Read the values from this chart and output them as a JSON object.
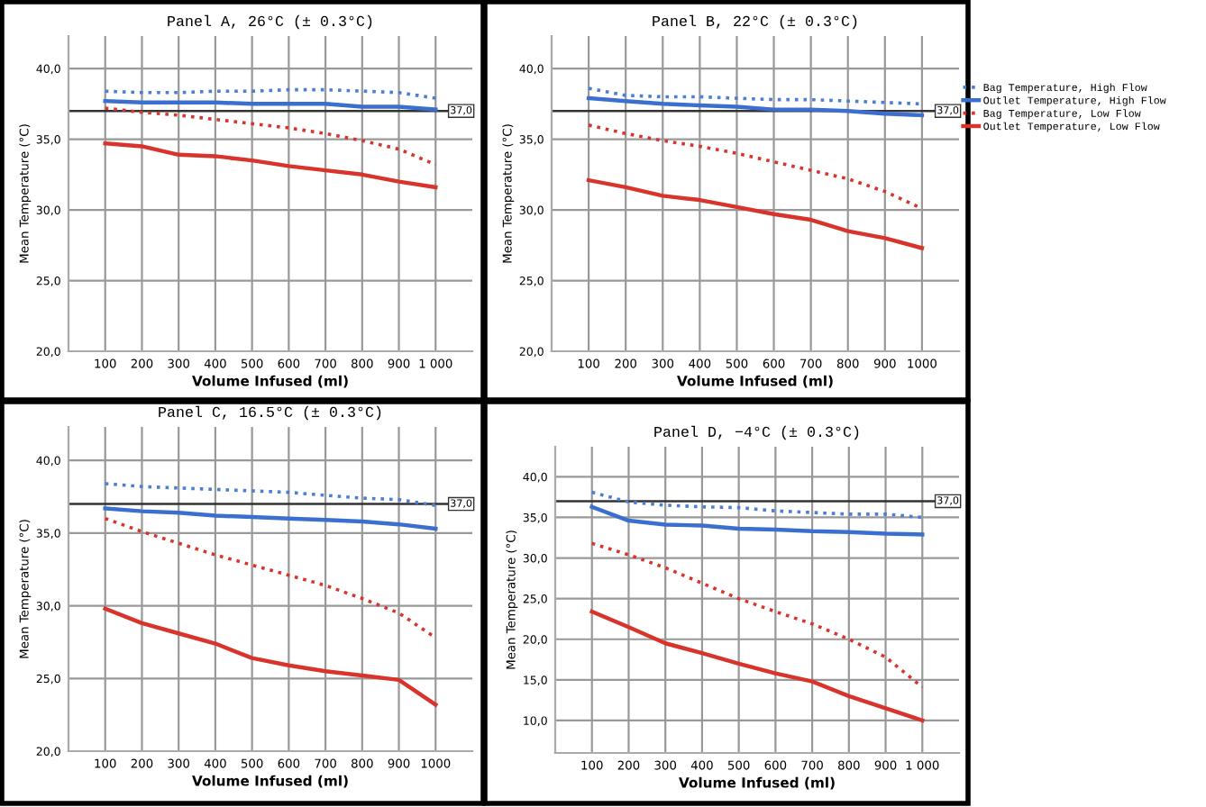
{
  "chart_data": [
    {
      "type": "line",
      "title": "Panel A, 26°C (± 0.3°C)",
      "xlabel": "Volume Infused (ml)",
      "ylabel": "Mean Temperature (°C)",
      "categories": [
        "100",
        "200",
        "300",
        "400",
        "500",
        "600",
        "700",
        "800",
        "900",
        "1 000"
      ],
      "series": [
        {
          "color": "#4a7fd4",
          "line_style": "dotted",
          "values": [
            38.4,
            38.3,
            38.3,
            38.4,
            38.4,
            38.5,
            38.5,
            38.4,
            38.3,
            37.9
          ]
        },
        {
          "color": "#3b6fcf",
          "line_style": "solid",
          "values": [
            37.7,
            37.6,
            37.6,
            37.6,
            37.5,
            37.5,
            37.5,
            37.3,
            37.3,
            37.1
          ]
        },
        {
          "color": "#d9342b",
          "line_style": "dotted",
          "values": [
            37.2,
            36.9,
            36.7,
            36.4,
            36.1,
            35.8,
            35.4,
            34.9,
            34.3,
            33.2
          ]
        },
        {
          "color": "#d9342b",
          "line_style": "solid",
          "values": [
            34.7,
            34.5,
            33.9,
            33.8,
            33.5,
            33.1,
            32.8,
            32.5,
            32.0,
            31.6
          ]
        }
      ],
      "ylim": [
        20,
        42.3
      ],
      "yticks": [
        {
          "value": 20,
          "label": "20,0"
        },
        {
          "value": 25,
          "label": "25,0"
        },
        {
          "value": 30,
          "label": "30,0"
        },
        {
          "value": 35,
          "label": "35,0"
        },
        {
          "value": 40,
          "label": "40,0"
        }
      ],
      "ref_lines": [
        {
          "axis": "y",
          "value": 37,
          "label": "37,0",
          "color": "#333333"
        }
      ],
      "grid": true,
      "legend": false
    },
    {
      "type": "line",
      "title": "Panel B, 22°C (± 0.3°C)",
      "xlabel": "Volume Infused (ml)",
      "ylabel": "Mean Temperature (°C)",
      "categories": [
        "100",
        "200",
        "300",
        "400",
        "500",
        "600",
        "700",
        "800",
        "900",
        "1000"
      ],
      "series": [
        {
          "name": "Bag Temperature, High Flow",
          "color": "#4a7fd4",
          "line_style": "dotted",
          "values": [
            38.6,
            38.1,
            38.0,
            38.0,
            37.9,
            37.8,
            37.8,
            37.7,
            37.6,
            37.5
          ]
        },
        {
          "name": "Outlet Temperature, High Flow",
          "color": "#3b6fcf",
          "line_style": "solid",
          "values": [
            37.9,
            37.7,
            37.5,
            37.4,
            37.3,
            37.1,
            37.1,
            37.0,
            36.8,
            36.7
          ]
        },
        {
          "name": "Bag Temperature, Low Flow",
          "color": "#d9342b",
          "line_style": "dotted",
          "values": [
            36.0,
            35.4,
            34.9,
            34.5,
            34.0,
            33.4,
            32.8,
            32.2,
            31.3,
            30.1
          ]
        },
        {
          "name": "Outlet Temperature, Low Flow",
          "color": "#d9342b",
          "line_style": "solid",
          "values": [
            32.1,
            31.6,
            31.0,
            30.7,
            30.2,
            29.7,
            29.3,
            28.5,
            28.0,
            27.3
          ]
        }
      ],
      "ylim": [
        20,
        42.3
      ],
      "yticks": [
        {
          "value": 20,
          "label": "20,0"
        },
        {
          "value": 25,
          "label": "25,0"
        },
        {
          "value": 30,
          "label": "30,0"
        },
        {
          "value": 35,
          "label": "35,0"
        },
        {
          "value": 40,
          "label": "40,0"
        }
      ],
      "ref_lines": [
        {
          "axis": "y",
          "value": 37,
          "label": "37,0",
          "color": "#333333"
        }
      ],
      "grid": true,
      "legend": "right"
    },
    {
      "type": "line",
      "title": "Panel C, 16.5°C (± 0.3°C)",
      "xlabel": "Volume Infused (ml)",
      "ylabel": "Mean Temperature (°C)",
      "categories": [
        "100",
        "200",
        "300",
        "400",
        "500",
        "600",
        "700",
        "800",
        "900",
        "1000"
      ],
      "series": [
        {
          "color": "#4a7fd4",
          "line_style": "dotted",
          "values": [
            38.4,
            38.2,
            38.1,
            38.0,
            37.9,
            37.8,
            37.6,
            37.4,
            37.3,
            36.9
          ]
        },
        {
          "color": "#3b6fcf",
          "line_style": "solid",
          "values": [
            36.7,
            36.5,
            36.4,
            36.2,
            36.1,
            36.0,
            35.9,
            35.8,
            35.6,
            35.3
          ]
        },
        {
          "color": "#d9342b",
          "line_style": "dotted",
          "values": [
            36.0,
            35.1,
            34.3,
            33.5,
            32.8,
            32.1,
            31.4,
            30.5,
            29.5,
            27.8
          ]
        },
        {
          "color": "#d9342b",
          "line_style": "solid",
          "values": [
            29.8,
            28.8,
            28.1,
            27.4,
            26.4,
            25.9,
            25.5,
            25.2,
            24.9,
            23.2
          ]
        }
      ],
      "ylim": [
        20,
        42.3
      ],
      "yticks": [
        {
          "value": 20,
          "label": "20,0"
        },
        {
          "value": 25,
          "label": "25,0"
        },
        {
          "value": 30,
          "label": "30,0"
        },
        {
          "value": 35,
          "label": "35,0"
        },
        {
          "value": 40,
          "label": "40,0"
        }
      ],
      "ref_lines": [
        {
          "axis": "y",
          "value": 37,
          "label": "37,0",
          "color": "#333333"
        }
      ],
      "grid": true,
      "legend": false
    },
    {
      "type": "line",
      "title": "Panel D, −4°C (± 0.3°C)",
      "xlabel": "Volume Infused (ml)",
      "ylabel": "Mean Temperature (°C)",
      "categories": [
        "100",
        "200",
        "300",
        "400",
        "500",
        "600",
        "700",
        "800",
        "900",
        "1 000"
      ],
      "series": [
        {
          "color": "#4a7fd4",
          "line_style": "dotted",
          "values": [
            38.1,
            36.9,
            36.5,
            36.3,
            36.2,
            35.8,
            35.6,
            35.4,
            35.4,
            35.0
          ]
        },
        {
          "color": "#3b6fcf",
          "line_style": "solid",
          "values": [
            36.3,
            34.6,
            34.1,
            34.0,
            33.6,
            33.5,
            33.3,
            33.2,
            33.0,
            32.9
          ]
        },
        {
          "color": "#d9342b",
          "line_style": "dotted",
          "values": [
            31.8,
            30.4,
            28.8,
            26.9,
            25.0,
            23.4,
            21.9,
            20.0,
            17.8,
            14.1
          ]
        },
        {
          "color": "#d9342b",
          "line_style": "solid",
          "values": [
            23.4,
            21.5,
            19.5,
            18.3,
            17.0,
            15.8,
            14.8,
            13.0,
            11.5,
            10.0
          ]
        }
      ],
      "ylim": [
        6,
        43.7
      ],
      "yticks": [
        {
          "value": 10,
          "label": "10,0"
        },
        {
          "value": 15,
          "label": "15,0"
        },
        {
          "value": 20,
          "label": "20,0"
        },
        {
          "value": 25,
          "label": "25,0"
        },
        {
          "value": 30,
          "label": "30,0"
        },
        {
          "value": 35,
          "label": "35,0"
        },
        {
          "value": 40,
          "label": "40,0"
        }
      ],
      "ref_lines": [
        {
          "axis": "y",
          "value": 37,
          "label": "37,0",
          "color": "#333333"
        }
      ],
      "grid": true,
      "legend": false
    }
  ]
}
